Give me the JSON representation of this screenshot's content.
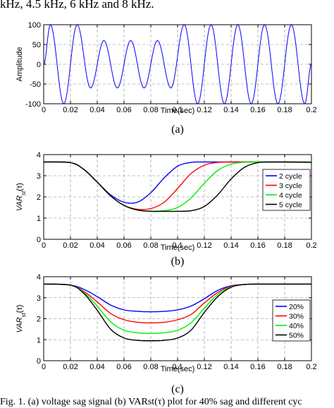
{
  "captions": {
    "top": "kHz, 4.5 kHz, 6 kHz and 8 kHz.",
    "bottom": "Fig. 1. (a) voltage sag signal (b) VARst(τ) plot for 40% sag and different cyc"
  },
  "colors": {
    "blue": "#0000ff",
    "red": "#ff0000",
    "green": "#00ee00",
    "black": "#000000",
    "grid": "#888888"
  },
  "chart_data": [
    {
      "id": "a",
      "type": "line",
      "panel_label": "(a)",
      "xlabel": "Time(sec)",
      "ylabel": "Amplitude",
      "xlim": [
        0,
        0.2
      ],
      "ylim": [
        -100,
        100
      ],
      "x_ticks": [
        "0",
        "0.02",
        "0.04",
        "0.06",
        "0.08",
        "0.1",
        "0.12",
        "0.14",
        "0.16",
        "0.18",
        "0.2"
      ],
      "y_ticks": [
        "-100",
        "-50",
        "0",
        "50",
        "100"
      ],
      "grid": true,
      "series": [
        {
          "color": "#0000ff",
          "x": [
            0.0,
            0.005,
            0.015,
            0.025,
            0.035,
            0.045,
            0.055,
            0.065,
            0.075,
            0.085,
            0.095,
            0.105,
            0.115,
            0.125,
            0.135,
            0.145,
            0.155,
            0.165,
            0.175,
            0.185,
            0.195,
            0.2
          ],
          "y": [
            0,
            100,
            -100,
            100,
            -60,
            60,
            -60,
            60,
            -60,
            60,
            -60,
            100,
            -100,
            100,
            -100,
            100,
            -100,
            100,
            -100,
            100,
            -100,
            0
          ]
        }
      ]
    },
    {
      "id": "b",
      "type": "line",
      "panel_label": "(b)",
      "xlabel": "Time(sec)",
      "ylabel": "VAR",
      "ylabel_sub": "st",
      "ylabel_arg": "(τ)",
      "xlim": [
        0,
        0.2
      ],
      "ylim": [
        0,
        4
      ],
      "x_ticks": [
        "0",
        "0.02",
        "0.04",
        "0.06",
        "0.08",
        "0.1",
        "0.12",
        "0.14",
        "0.16",
        "0.18",
        "0.2"
      ],
      "y_ticks": [
        "0",
        "1",
        "2",
        "3",
        "4"
      ],
      "grid": true,
      "legend": {
        "placement": "right"
      },
      "series": [
        {
          "name": "2 cycle",
          "color": "#0000ff",
          "x": [
            0,
            0.02,
            0.03,
            0.04,
            0.05,
            0.06,
            0.07,
            0.08,
            0.09,
            0.1,
            0.11,
            0.12,
            0.14,
            0.16,
            0.18,
            0.2
          ],
          "y": [
            3.65,
            3.62,
            3.3,
            2.7,
            2.1,
            1.75,
            1.75,
            2.2,
            2.9,
            3.45,
            3.63,
            3.65,
            3.65,
            3.65,
            3.65,
            3.65
          ]
        },
        {
          "name": "3 cycle",
          "color": "#ff0000",
          "x": [
            0,
            0.02,
            0.03,
            0.04,
            0.05,
            0.06,
            0.07,
            0.08,
            0.09,
            0.1,
            0.11,
            0.12,
            0.13,
            0.14,
            0.16,
            0.18,
            0.2
          ],
          "y": [
            3.65,
            3.62,
            3.3,
            2.7,
            2.05,
            1.6,
            1.42,
            1.45,
            1.75,
            2.4,
            3.1,
            3.5,
            3.63,
            3.65,
            3.65,
            3.65,
            3.65
          ]
        },
        {
          "name": "4 cycle",
          "color": "#00ee00",
          "x": [
            0,
            0.02,
            0.03,
            0.04,
            0.05,
            0.06,
            0.07,
            0.08,
            0.09,
            0.1,
            0.11,
            0.12,
            0.13,
            0.14,
            0.15,
            0.16,
            0.18,
            0.2
          ],
          "y": [
            3.65,
            3.62,
            3.3,
            2.7,
            2.05,
            1.6,
            1.38,
            1.33,
            1.35,
            1.5,
            1.95,
            2.65,
            3.25,
            3.55,
            3.64,
            3.65,
            3.65,
            3.65
          ]
        },
        {
          "name": "5 cycle",
          "color": "#000000",
          "x": [
            0,
            0.02,
            0.03,
            0.04,
            0.05,
            0.06,
            0.07,
            0.08,
            0.09,
            0.1,
            0.11,
            0.12,
            0.13,
            0.14,
            0.15,
            0.16,
            0.17,
            0.18,
            0.2
          ],
          "y": [
            3.65,
            3.62,
            3.3,
            2.7,
            2.05,
            1.6,
            1.38,
            1.32,
            1.32,
            1.32,
            1.35,
            1.55,
            2.1,
            2.85,
            3.4,
            3.62,
            3.65,
            3.65,
            3.63
          ]
        }
      ]
    },
    {
      "id": "c",
      "type": "line",
      "panel_label": "(c)",
      "xlabel": "Time(sec)",
      "ylabel": "VAR",
      "ylabel_sub": "st",
      "ylabel_arg": "(τ)",
      "xlim": [
        0,
        0.2
      ],
      "ylim": [
        0,
        4
      ],
      "x_ticks": [
        "0",
        "0.02",
        "0.04",
        "0.06",
        "0.08",
        "0.1",
        "0.12",
        "0.14",
        "0.16",
        "0.18",
        "0.2"
      ],
      "y_ticks": [
        "0",
        "1",
        "2",
        "3",
        "4"
      ],
      "grid": true,
      "legend": {
        "placement": "right"
      },
      "series": [
        {
          "name": "20%",
          "color": "#0000ff",
          "x": [
            0,
            0.02,
            0.03,
            0.04,
            0.05,
            0.06,
            0.07,
            0.08,
            0.09,
            0.1,
            0.11,
            0.12,
            0.13,
            0.14,
            0.15,
            0.16,
            0.18,
            0.2
          ],
          "y": [
            3.65,
            3.6,
            3.4,
            3.05,
            2.65,
            2.42,
            2.35,
            2.33,
            2.35,
            2.42,
            2.6,
            2.95,
            3.35,
            3.57,
            3.63,
            3.65,
            3.65,
            3.65
          ]
        },
        {
          "name": "30%",
          "color": "#ff0000",
          "x": [
            0,
            0.02,
            0.03,
            0.04,
            0.05,
            0.06,
            0.07,
            0.08,
            0.09,
            0.1,
            0.11,
            0.12,
            0.13,
            0.14,
            0.15,
            0.16,
            0.18,
            0.2
          ],
          "y": [
            3.65,
            3.6,
            3.3,
            2.8,
            2.25,
            1.95,
            1.83,
            1.8,
            1.83,
            1.95,
            2.2,
            2.75,
            3.25,
            3.55,
            3.63,
            3.65,
            3.65,
            3.65
          ]
        },
        {
          "name": "40%",
          "color": "#00ee00",
          "x": [
            0,
            0.02,
            0.03,
            0.04,
            0.05,
            0.06,
            0.07,
            0.08,
            0.09,
            0.1,
            0.11,
            0.12,
            0.13,
            0.14,
            0.15,
            0.16,
            0.18,
            0.2
          ],
          "y": [
            3.65,
            3.6,
            3.25,
            2.6,
            1.85,
            1.45,
            1.33,
            1.3,
            1.33,
            1.45,
            1.8,
            2.5,
            3.15,
            3.52,
            3.63,
            3.65,
            3.65,
            3.65
          ]
        },
        {
          "name": "50%",
          "color": "#000000",
          "x": [
            0,
            0.02,
            0.03,
            0.04,
            0.05,
            0.06,
            0.07,
            0.08,
            0.09,
            0.1,
            0.11,
            0.12,
            0.13,
            0.14,
            0.15,
            0.16,
            0.18,
            0.2
          ],
          "y": [
            3.65,
            3.6,
            3.2,
            2.4,
            1.5,
            1.08,
            0.97,
            0.95,
            0.97,
            1.08,
            1.45,
            2.3,
            3.05,
            3.5,
            3.63,
            3.65,
            3.65,
            3.65
          ]
        }
      ]
    }
  ]
}
